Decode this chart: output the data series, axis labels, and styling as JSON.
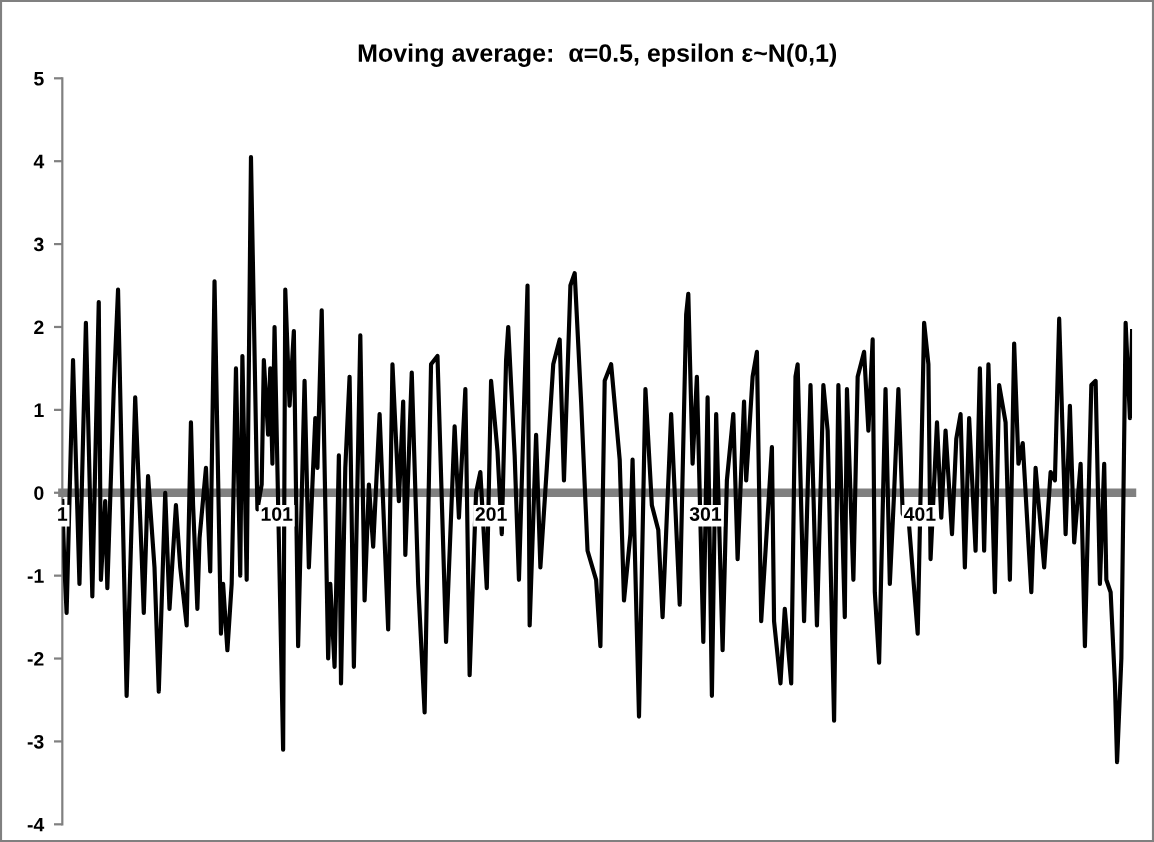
{
  "chart_data": {
    "type": "line",
    "title": "Moving average:  α=0.5, epsilon ε~N(0,1)",
    "x": [
      1,
      2,
      3,
      6,
      9,
      12,
      15,
      18,
      19,
      21,
      22,
      25,
      27,
      31,
      35,
      38,
      39,
      41,
      44,
      46,
      49,
      51,
      54,
      56,
      59,
      61,
      62,
      64,
      65,
      68,
      70,
      72,
      75,
      76,
      78,
      80,
      82,
      84,
      85,
      87,
      89,
      92,
      94,
      95,
      97,
      98,
      99,
      100,
      104,
      105,
      107,
      109,
      111,
      114,
      116,
      119,
      120,
      122,
      125,
      126,
      128,
      130,
      131,
      133,
      135,
      137,
      140,
      142,
      144,
      146,
      149,
      153,
      155,
      158,
      160,
      161,
      164,
      167,
      170,
      173,
      176,
      180,
      184,
      186,
      189,
      191,
      194,
      196,
      199,
      201,
      204,
      206,
      208,
      209,
      212,
      214,
      218,
      219,
      222,
      224,
      227,
      230,
      233,
      235,
      238,
      240,
      243,
      246,
      250,
      252,
      254,
      257,
      261,
      263,
      266,
      267,
      270,
      273,
      276,
      279,
      281,
      285,
      289,
      292,
      293,
      295,
      297,
      300,
      302,
      304,
      306,
      309,
      311,
      314,
      316,
      319,
      320,
      323,
      325,
      327,
      332,
      333,
      336,
      338,
      341,
      343,
      344,
      347,
      350,
      353,
      356,
      358,
      361,
      363,
      366,
      367,
      370,
      372,
      375,
      377,
      379,
      380,
      382,
      385,
      387,
      389,
      391,
      393,
      396,
      400,
      403,
      405,
      406,
      409,
      411,
      413,
      416,
      418,
      420,
      422,
      424,
      427,
      429,
      431,
      433,
      436,
      438,
      441,
      443,
      445,
      447,
      449,
      451,
      453,
      455,
      459,
      462,
      464,
      466,
      469,
      471,
      473,
      476,
      478,
      481,
      483,
      485,
      487,
      488,
      490,
      492,
      493,
      495,
      497,
      499,
      500
    ],
    "series": [
      {
        "color": "#000000",
        "values": [
          -0.1,
          -0.9,
          -1.45,
          1.6,
          -1.1,
          2.05,
          -1.25,
          2.3,
          -1.05,
          -0.1,
          -1.15,
          1.25,
          2.45,
          -2.45,
          1.15,
          -0.75,
          -1.45,
          0.2,
          -0.9,
          -2.4,
          0,
          -1.4,
          -0.15,
          -0.9,
          -1.6,
          0.85,
          -0.15,
          -1.4,
          -0.55,
          0.3,
          -0.95,
          2.55,
          -1.7,
          -1.1,
          -1.9,
          -1.1,
          1.5,
          -1.0,
          1.65,
          -1.05,
          4.05,
          -0.2,
          0.1,
          1.6,
          0.7,
          1.5,
          0.35,
          2.0,
          -3.1,
          2.45,
          1.05,
          1.95,
          -1.85,
          1.35,
          -0.9,
          0.9,
          0.3,
          2.2,
          -2.0,
          -1.1,
          -2.1,
          0.45,
          -2.3,
          0.3,
          1.4,
          -2.1,
          1.9,
          -1.3,
          0.1,
          -0.65,
          0.95,
          -1.65,
          1.55,
          -0.1,
          1.1,
          -0.75,
          1.45,
          -1.1,
          -2.65,
          1.55,
          1.65,
          -1.8,
          0.8,
          -0.3,
          1.25,
          -2.2,
          0,
          0.25,
          -1.15,
          1.35,
          0.5,
          -0.5,
          1.6,
          2.0,
          0.45,
          -1.05,
          2.5,
          -1.6,
          0.7,
          -0.9,
          0.3,
          1.55,
          1.85,
          0.15,
          2.5,
          2.65,
          1.1,
          -0.7,
          -1.05,
          -1.85,
          1.35,
          1.55,
          0.4,
          -1.3,
          -0.5,
          0.4,
          -2.7,
          1.25,
          -0.15,
          -0.45,
          -1.5,
          0.95,
          -1.35,
          2.15,
          2.4,
          0.35,
          1.4,
          -1.8,
          1.15,
          -2.45,
          0.95,
          -1.9,
          0.15,
          0.95,
          -0.8,
          1.1,
          0.15,
          1.4,
          1.7,
          -1.55,
          0.55,
          -1.55,
          -2.3,
          -1.4,
          -2.3,
          1.4,
          1.55,
          -1.55,
          1.3,
          -1.6,
          1.3,
          0.75,
          -2.75,
          1.3,
          -1.5,
          1.25,
          -1.05,
          1.4,
          1.7,
          0.75,
          1.85,
          -1.2,
          -2.05,
          1.25,
          -1.1,
          0,
          1.25,
          -0.25,
          -0.4,
          -1.7,
          2.05,
          1.55,
          -0.8,
          0.85,
          -0.3,
          0.75,
          -0.5,
          0.65,
          0.95,
          -0.9,
          0.9,
          -0.7,
          1.5,
          -0.7,
          1.55,
          -1.2,
          1.3,
          0.85,
          -1.05,
          1.8,
          0.35,
          0.6,
          -0.3,
          -1.2,
          0.3,
          -0.9,
          0.25,
          0.15,
          2.1,
          -0.5,
          1.05,
          -0.6,
          0.35,
          -1.85,
          1.3,
          1.35,
          -1.1,
          0.35,
          -1.05,
          -1.2,
          -2.3,
          -3.25,
          -2.0,
          2.05,
          0.9,
          1.95
        ]
      }
    ],
    "xlim": [
      1,
      500
    ],
    "xticks": [
      1,
      101,
      201,
      301,
      401
    ],
    "ylim": [
      -4,
      5
    ],
    "yticks": [
      -4,
      -3,
      -2,
      -1,
      0,
      1,
      2,
      3,
      4,
      5
    ]
  }
}
